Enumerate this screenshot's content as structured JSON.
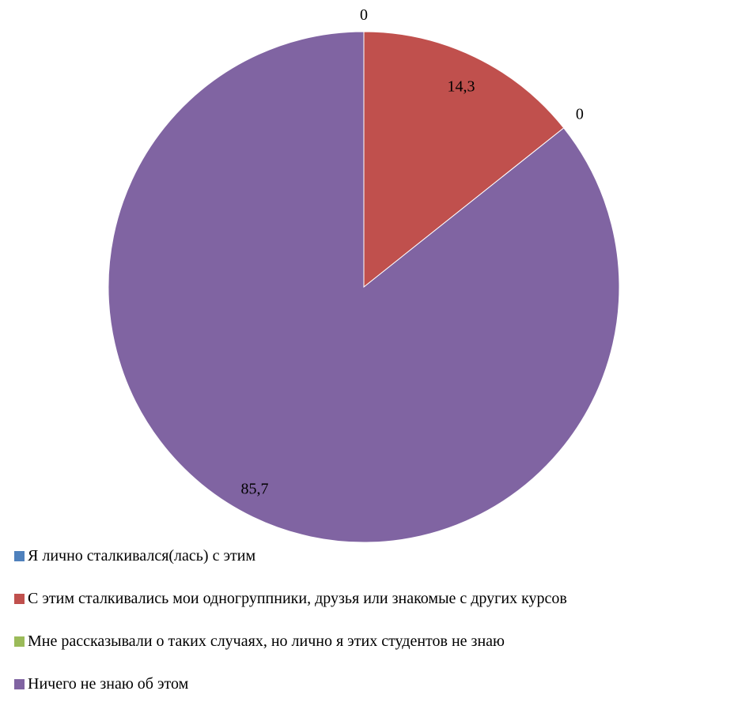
{
  "chart_data": {
    "type": "pie",
    "title": "",
    "categories": [
      "Я лично сталкивался(лась) с этим",
      "С этим сталкивались мои одногруппники, друзья или знакомые с других курсов",
      "Мне рассказывали о таких случаях, но лично я этих студентов не знаю",
      "Ничего не знаю об этом"
    ],
    "values": [
      0,
      14.3,
      0,
      85.7
    ],
    "value_labels": [
      "0",
      "14,3",
      "0",
      "85,7"
    ],
    "colors": [
      "#4F81BD",
      "#C0504D",
      "#9BBB59",
      "#8064A2"
    ],
    "legend_position": "bottom",
    "start_angle": "12 o'clock",
    "direction": "clockwise"
  }
}
